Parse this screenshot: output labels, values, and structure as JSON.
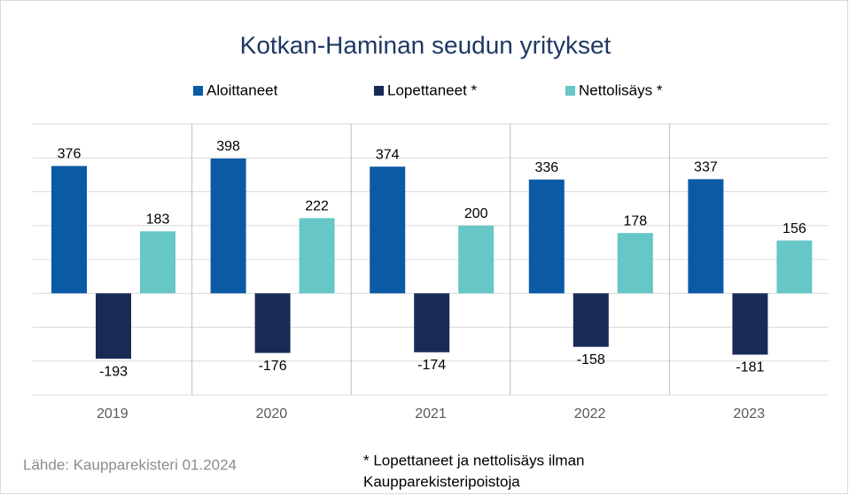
{
  "chart_data": {
    "type": "bar",
    "title": "Kotkan-Haminan seudun yritykset",
    "categories": [
      "2019",
      "2020",
      "2021",
      "2022",
      "2023"
    ],
    "series": [
      {
        "name": "Aloittaneet",
        "color": "#0b5aa6",
        "values": [
          376,
          398,
          374,
          336,
          337
        ]
      },
      {
        "name": "Lopettaneet *",
        "color": "#1a2a57",
        "values": [
          -193,
          -176,
          -174,
          -158,
          -181
        ]
      },
      {
        "name": "Nettolisäys *",
        "color": "#66c7c6",
        "values": [
          183,
          222,
          200,
          178,
          156
        ]
      }
    ],
    "ylim": [
      -300,
      500
    ],
    "yticks": [
      -300,
      -200,
      -100,
      0,
      100,
      200,
      300,
      400,
      500
    ],
    "grid": true,
    "source": "Lähde: Kaupparekisteri 01.2024",
    "footnote": [
      "* Lopettaneet ja nettolisäys ilman",
      "Kaupparekisteripoistoja"
    ]
  }
}
